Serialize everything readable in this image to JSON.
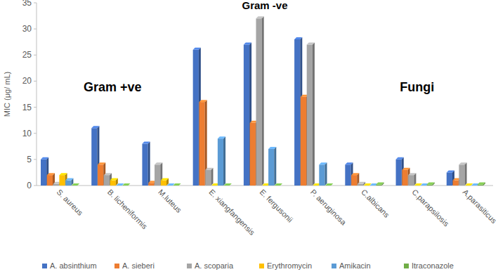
{
  "chart_data": {
    "type": "bar",
    "y_label": "MIC (μg/ mL)",
    "annotations": [
      "Gram +ve",
      "Gram -ve",
      "Fungi"
    ],
    "categories": [
      "S. aureus",
      "B. licheniformis",
      "M.luteus",
      "E. xiangfangensis",
      "E. fergusonii",
      "P. aeruginosa",
      "C.albicans",
      "C.parapsilosis",
      "A.parasiticus"
    ],
    "series": [
      {
        "name": "A. absinthium",
        "color": "#4472c4",
        "values": [
          5,
          11,
          8,
          26,
          27,
          28,
          4,
          5,
          2.5
        ]
      },
      {
        "name": "A. sieberi",
        "color": "#ed7d31",
        "values": [
          2,
          4,
          0.5,
          16,
          12,
          17,
          2,
          3,
          1
        ]
      },
      {
        "name": "A. scoparia",
        "color": "#a5a5a5",
        "values": [
          0.3,
          2,
          4,
          3,
          32,
          27,
          0.3,
          2,
          4
        ]
      },
      {
        "name": "Erythromycin",
        "color": "#ffc000",
        "values": [
          2,
          1,
          1,
          0,
          0,
          0,
          0,
          0,
          0
        ]
      },
      {
        "name": "Amikacin",
        "color": "#5b9bd5",
        "values": [
          1,
          0,
          0,
          9,
          7,
          4,
          0,
          0,
          0
        ]
      },
      {
        "name": "Itraconazole",
        "color": "#70ad47",
        "values": [
          0,
          0,
          0,
          0,
          0,
          0,
          0.2,
          0.2,
          0.2
        ]
      }
    ],
    "ylim": [
      0,
      35
    ],
    "yticks": [
      0,
      5,
      10,
      15,
      20,
      25,
      30,
      35
    ],
    "grid": false,
    "legend": "bottom"
  }
}
